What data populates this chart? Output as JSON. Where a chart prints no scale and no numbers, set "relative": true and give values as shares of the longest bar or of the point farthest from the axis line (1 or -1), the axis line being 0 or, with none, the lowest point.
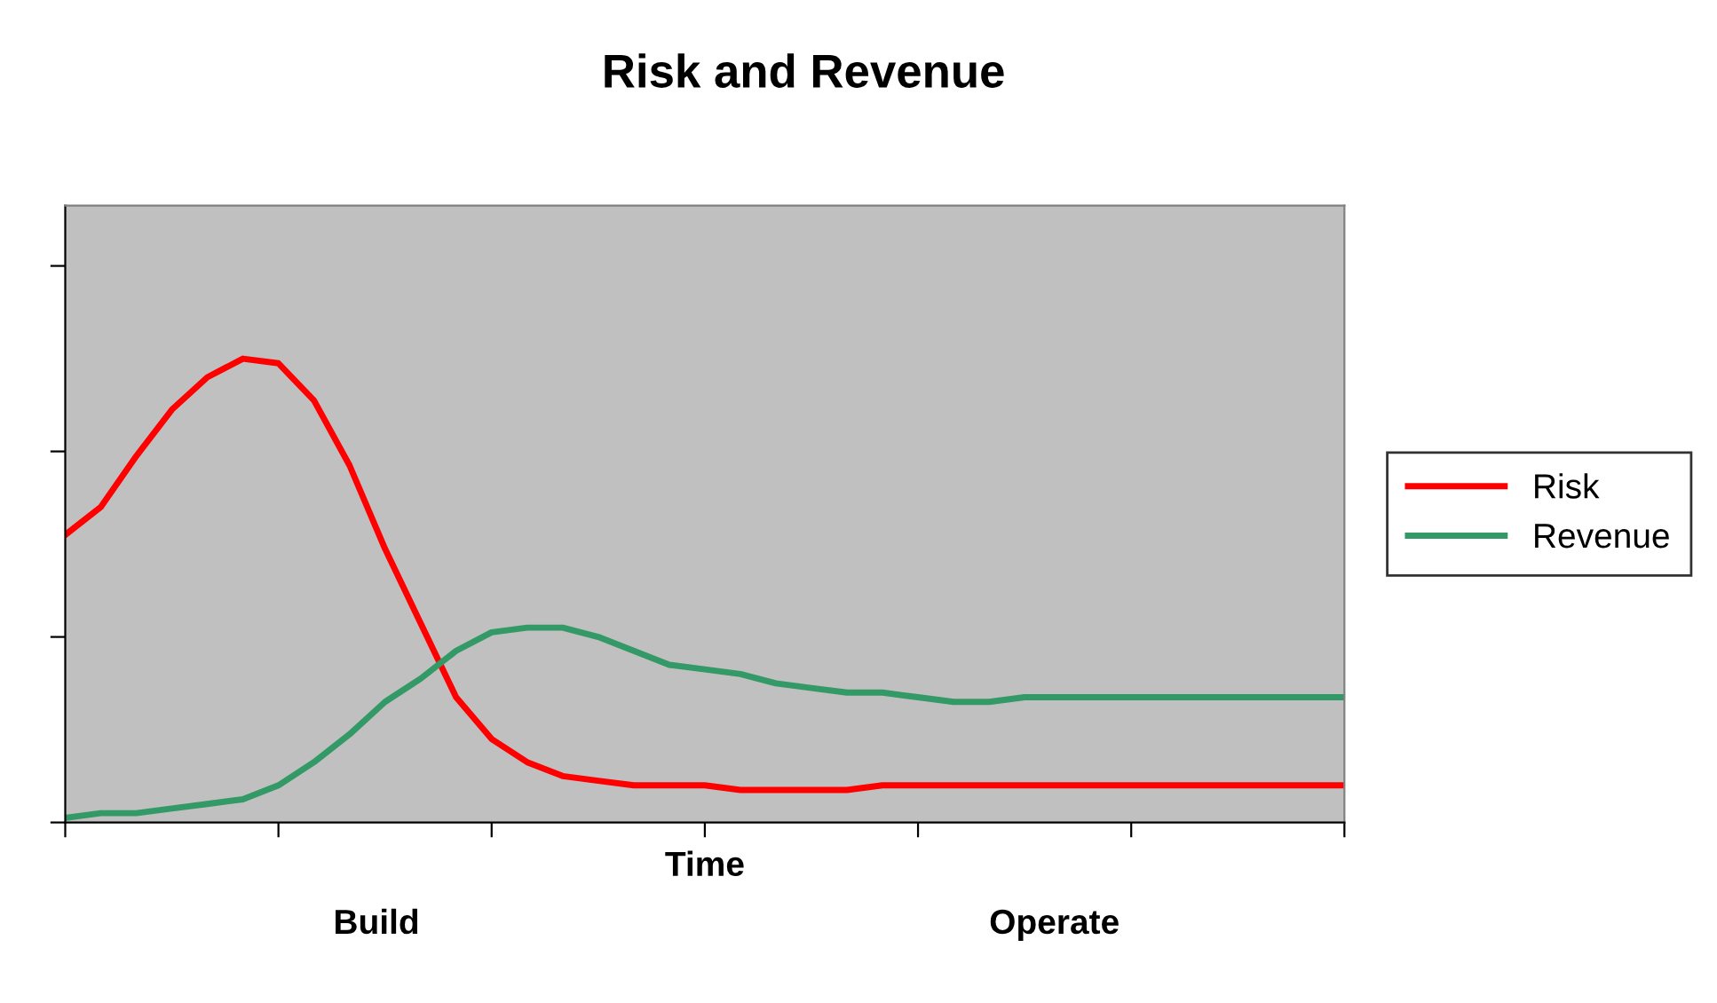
{
  "chart_data": {
    "type": "line",
    "title": "Risk and Revenue",
    "xlabel": "Time",
    "relative": true,
    "categories": [
      null,
      null,
      null,
      null,
      null,
      null,
      null,
      null,
      null,
      null,
      null,
      null,
      null,
      null,
      null,
      null,
      null,
      null,
      null,
      null,
      null,
      null,
      null,
      null,
      null,
      null,
      null,
      null,
      null,
      null,
      null,
      null,
      null,
      null,
      null,
      null,
      null
    ],
    "series": [
      {
        "name": "Risk",
        "color": "#ff0000",
        "values": [
          0.62,
          0.68,
          0.79,
          0.89,
          0.96,
          1.0,
          0.99,
          0.91,
          0.77,
          0.59,
          0.43,
          0.27,
          0.18,
          0.13,
          0.1,
          0.09,
          0.08,
          0.08,
          0.08,
          0.07,
          0.07,
          0.07,
          0.07,
          0.08,
          0.08,
          0.08,
          0.08,
          0.08,
          0.08,
          0.08,
          0.08,
          0.08,
          0.08,
          0.08,
          0.08,
          0.08,
          0.08
        ]
      },
      {
        "name": "Revenue",
        "color": "#339966",
        "values": [
          0.01,
          0.02,
          0.02,
          0.03,
          0.04,
          0.05,
          0.08,
          0.13,
          0.19,
          0.26,
          0.31,
          0.37,
          0.41,
          0.42,
          0.42,
          0.4,
          0.37,
          0.34,
          0.33,
          0.32,
          0.3,
          0.29,
          0.28,
          0.28,
          0.27,
          0.26,
          0.26,
          0.27,
          0.27,
          0.27,
          0.27,
          0.27,
          0.27,
          0.27,
          0.27,
          0.27,
          0.27
        ]
      }
    ],
    "annotations": [
      "Build",
      "Operate"
    ],
    "legend": "right",
    "marker": "none",
    "line_style": "solid",
    "grid": false
  }
}
